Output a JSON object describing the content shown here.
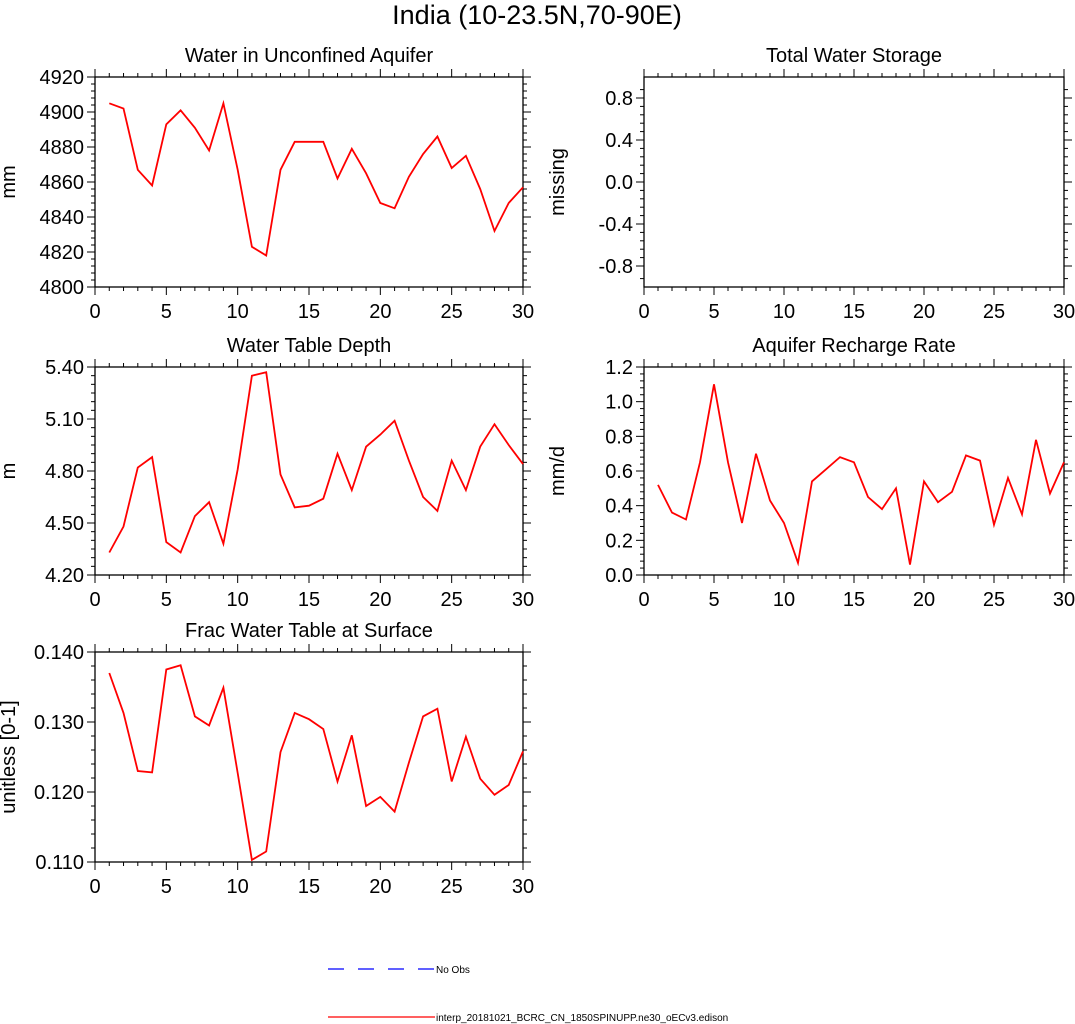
{
  "figure_title": "India (10-23.5N,70-90E)",
  "legend": {
    "obs_label": "No Obs",
    "model_label": "interp_20181021_BCRC_CN_1850SPINUPP.ne30_oECv3.edison",
    "obs_color": "#0000ff",
    "model_color": "#ff0000"
  },
  "chart_data": [
    {
      "type": "line",
      "title": "Water in Unconfined Aquifer",
      "ylabel": "mm",
      "xlim": [
        0,
        30
      ],
      "ylim": [
        4800,
        4920
      ],
      "xticks": [
        0,
        5,
        10,
        15,
        20,
        25,
        30
      ],
      "yticks": [
        4800,
        4820,
        4840,
        4860,
        4880,
        4900,
        4920
      ],
      "ytick_labels": [
        "4800",
        "4820",
        "4840",
        "4860",
        "4880",
        "4900",
        "4920"
      ],
      "xtick_labels": [
        "0",
        "5",
        "10",
        "15",
        "20",
        "25",
        "30"
      ],
      "yminor": 4,
      "series": [
        {
          "name": "interp_20181021_BCRC_CN_1850SPINUPP.ne30_oECv3.edison",
          "color": "#ff0000",
          "x": [
            1,
            2,
            3,
            4,
            5,
            6,
            7,
            8,
            9,
            10,
            11,
            12,
            13,
            14,
            15,
            16,
            17,
            18,
            19,
            20,
            21,
            22,
            23,
            24,
            25,
            26,
            27,
            28,
            29,
            30
          ],
          "y": [
            4905,
            4902,
            4867,
            4858,
            4893,
            4901,
            4891,
            4878,
            4905,
            4867,
            4823,
            4818,
            4867,
            4883,
            4883,
            4883,
            4862,
            4879,
            4865,
            4848,
            4845,
            4863,
            4876,
            4886,
            4868,
            4875,
            4856,
            4832,
            4848,
            4857
          ]
        }
      ]
    },
    {
      "type": "line",
      "title": "Total Water Storage",
      "ylabel": "missing",
      "xlim": [
        0,
        30
      ],
      "ylim": [
        -1,
        1
      ],
      "xticks": [
        0,
        5,
        10,
        15,
        20,
        25,
        30
      ],
      "yticks": [
        -0.8,
        -0.4,
        0.0,
        0.4,
        0.8
      ],
      "ytick_labels": [
        "-0.8",
        "-0.4",
        "0.0",
        "0.4",
        "0.8"
      ],
      "xtick_labels": [
        "0",
        "5",
        "10",
        "15",
        "20",
        "25",
        "30"
      ],
      "yminor": 4,
      "series": []
    },
    {
      "type": "line",
      "title": "Water Table Depth",
      "ylabel": "m",
      "xlim": [
        0,
        30
      ],
      "ylim": [
        4.2,
        5.4
      ],
      "xticks": [
        0,
        5,
        10,
        15,
        20,
        25,
        30
      ],
      "yticks": [
        4.2,
        4.5,
        4.8,
        5.1,
        5.4
      ],
      "ytick_labels": [
        "4.20",
        "4.50",
        "4.80",
        "5.10",
        "5.40"
      ],
      "xtick_labels": [
        "0",
        "5",
        "10",
        "15",
        "20",
        "25",
        "30"
      ],
      "yminor": 5,
      "series": [
        {
          "name": "interp_20181021_BCRC_CN_1850SPINUPP.ne30_oECv3.edison",
          "color": "#ff0000",
          "x": [
            1,
            2,
            3,
            4,
            5,
            6,
            7,
            8,
            9,
            10,
            11,
            12,
            13,
            14,
            15,
            16,
            17,
            18,
            19,
            20,
            21,
            22,
            23,
            24,
            25,
            26,
            27,
            28,
            29,
            30
          ],
          "y": [
            4.33,
            4.48,
            4.82,
            4.88,
            4.39,
            4.33,
            4.54,
            4.62,
            4.38,
            4.81,
            5.35,
            5.37,
            4.78,
            4.59,
            4.6,
            4.64,
            4.9,
            4.69,
            4.94,
            5.01,
            5.09,
            4.86,
            4.65,
            4.57,
            4.86,
            4.69,
            4.94,
            5.07,
            4.95,
            4.84
          ]
        }
      ]
    },
    {
      "type": "line",
      "title": "Aquifer Recharge Rate",
      "ylabel": "mm/d",
      "xlim": [
        0,
        30
      ],
      "ylim": [
        0,
        1.2
      ],
      "xticks": [
        0,
        5,
        10,
        15,
        20,
        25,
        30
      ],
      "yticks": [
        0.0,
        0.2,
        0.4,
        0.6,
        0.8,
        1.0,
        1.2
      ],
      "ytick_labels": [
        "0.0",
        "0.2",
        "0.4",
        "0.6",
        "0.8",
        "1.0",
        "1.2"
      ],
      "xtick_labels": [
        "0",
        "5",
        "10",
        "15",
        "20",
        "25",
        "30"
      ],
      "yminor": 4,
      "series": [
        {
          "name": "interp_20181021_BCRC_CN_1850SPINUPP.ne30_oECv3.edison",
          "color": "#ff0000",
          "x": [
            1,
            2,
            3,
            4,
            5,
            6,
            7,
            8,
            9,
            10,
            11,
            12,
            13,
            14,
            15,
            16,
            17,
            18,
            19,
            20,
            21,
            22,
            23,
            24,
            25,
            26,
            27,
            28,
            29,
            30
          ],
          "y": [
            0.52,
            0.36,
            0.32,
            0.65,
            1.1,
            0.65,
            0.3,
            0.7,
            0.43,
            0.3,
            0.07,
            0.54,
            0.61,
            0.68,
            0.65,
            0.45,
            0.38,
            0.5,
            0.06,
            0.54,
            0.42,
            0.48,
            0.69,
            0.66,
            0.29,
            0.56,
            0.35,
            0.78,
            0.47,
            0.65
          ]
        }
      ]
    },
    {
      "type": "line",
      "title": "Frac Water Table at Surface",
      "ylabel": "unitless [0-1]",
      "xlim": [
        0,
        30
      ],
      "ylim": [
        0.11,
        0.14
      ],
      "xticks": [
        0,
        5,
        10,
        15,
        20,
        25,
        30
      ],
      "yticks": [
        0.11,
        0.12,
        0.13,
        0.14
      ],
      "ytick_labels": [
        "0.110",
        "0.120",
        "0.130",
        "0.140"
      ],
      "xtick_labels": [
        "0",
        "5",
        "10",
        "15",
        "20",
        "25",
        "30"
      ],
      "yminor": 4,
      "series": [
        {
          "name": "interp_20181021_BCRC_CN_1850SPINUPP.ne30_oECv3.edison",
          "color": "#ff0000",
          "x": [
            1,
            2,
            3,
            4,
            5,
            6,
            7,
            8,
            9,
            10,
            11,
            12,
            13,
            14,
            15,
            16,
            17,
            18,
            19,
            20,
            21,
            22,
            23,
            24,
            25,
            26,
            27,
            28,
            29,
            30
          ],
          "y": [
            0.137,
            0.1313,
            0.123,
            0.1228,
            0.1375,
            0.1381,
            0.1308,
            0.1295,
            0.1349,
            0.1227,
            0.1103,
            0.1115,
            0.1257,
            0.1313,
            0.1304,
            0.129,
            0.1215,
            0.1281,
            0.118,
            0.1193,
            0.1172,
            0.1242,
            0.1308,
            0.1319,
            0.1215,
            0.1279,
            0.1219,
            0.1196,
            0.121,
            0.1258
          ]
        }
      ]
    }
  ]
}
